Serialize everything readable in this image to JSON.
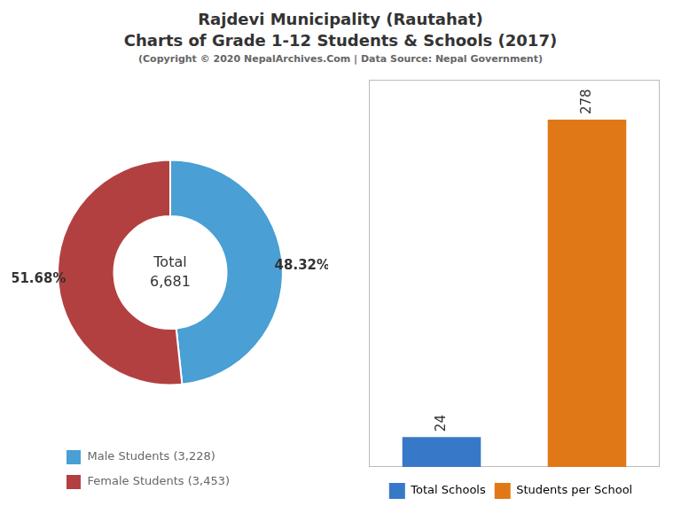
{
  "chart_data": [
    {
      "type": "doughnut",
      "title": [
        "Rajdevi Municipality (Rautahat)",
        "Charts of Grade 1-12 Students & Schools (2017)"
      ],
      "subtitle": "(Copyright © 2020 NepalArchives.Com | Data Source: Nepal Government)",
      "categories": [
        "Male Students (3,228)",
        "Female Students (3,453)"
      ],
      "values": [
        48.32,
        51.68
      ],
      "value_labels": [
        "48.32%",
        "51.68%"
      ],
      "data_labels": true,
      "colors": [
        "#4a9fd4",
        "#b34040"
      ],
      "annotations": [
        "Total",
        "6,681"
      ],
      "legend": "bottom"
    },
    {
      "type": "bar",
      "categories": [
        "Total Schools",
        "Students per School"
      ],
      "values": [
        24,
        278
      ],
      "colors": [
        "#3878c8",
        "#e07818"
      ],
      "data_labels": true,
      "ylim": [
        0,
        310
      ],
      "tick_labels": false,
      "grid": false,
      "legend": "bottom"
    }
  ]
}
